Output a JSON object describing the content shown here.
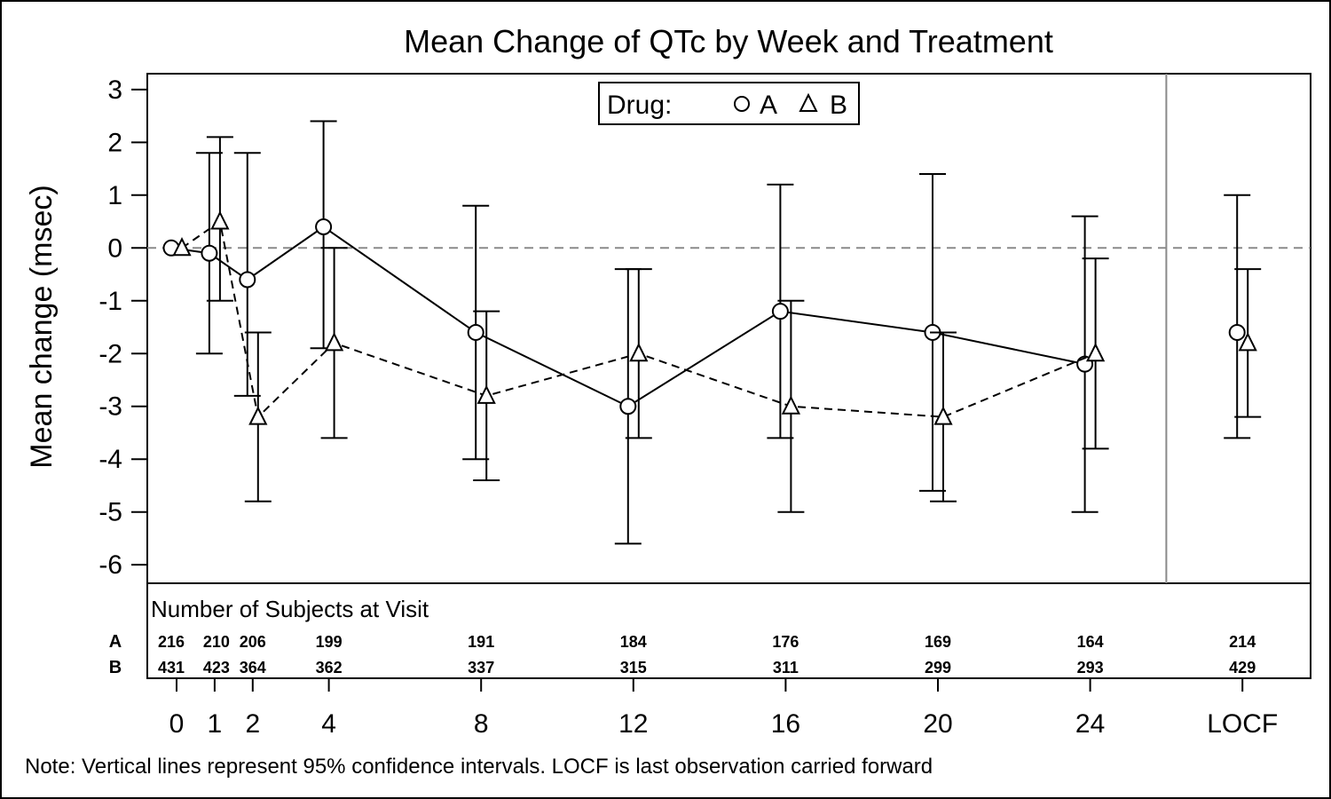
{
  "chart_data": {
    "type": "line",
    "title": "Mean Change of QTc by Week and Treatment",
    "ylabel": "Mean change (msec)",
    "ylim": [
      -6.35,
      3.3
    ],
    "yticks": [
      3,
      2,
      1,
      0,
      -1,
      -2,
      -3,
      -4,
      -5,
      -6
    ],
    "x_categories": [
      "0",
      "1",
      "2",
      "4",
      "8",
      "12",
      "16",
      "20",
      "24",
      "LOCF"
    ],
    "x_values": [
      0,
      1,
      2,
      4,
      8,
      12,
      16,
      20,
      24,
      28
    ],
    "reference_line_y": 0,
    "legend": {
      "title": "Drug:",
      "position": "top-center",
      "entries": [
        "A",
        "B"
      ]
    },
    "series": [
      {
        "name": "A",
        "marker": "circle",
        "line": "solid",
        "mean": [
          0,
          -0.1,
          -0.6,
          0.4,
          -1.6,
          -3.0,
          -1.2,
          -1.6,
          -2.2,
          -1.6
        ],
        "lower": [
          null,
          -2.0,
          -2.8,
          -1.9,
          -4.0,
          -5.6,
          -3.6,
          -4.6,
          -5.0,
          -3.6
        ],
        "upper": [
          null,
          1.8,
          1.8,
          2.4,
          0.8,
          -0.4,
          1.2,
          1.4,
          0.6,
          1.0
        ]
      },
      {
        "name": "B",
        "marker": "triangle",
        "line": "dashed",
        "mean": [
          0,
          0.5,
          -3.2,
          -1.8,
          -2.8,
          -2.0,
          -3.0,
          -3.2,
          -2.0,
          -1.8
        ],
        "lower": [
          null,
          -1.0,
          -4.8,
          -3.6,
          -4.4,
          -3.6,
          -5.0,
          -4.8,
          -3.8,
          -3.2
        ],
        "upper": [
          null,
          2.1,
          -1.6,
          0.0,
          -1.2,
          -0.4,
          -1.0,
          -1.6,
          -0.2,
          -0.4
        ]
      }
    ],
    "subjects_table": {
      "title": "Number of Subjects at Visit",
      "rows": [
        {
          "label": "A",
          "counts": [
            "216",
            "210",
            "206",
            "199",
            "191",
            "184",
            "176",
            "169",
            "164",
            "214"
          ]
        },
        {
          "label": "B",
          "counts": [
            "431",
            "423",
            "364",
            "362",
            "337",
            "315",
            "311",
            "299",
            "293",
            "429"
          ]
        }
      ]
    },
    "footnote": "Note: Vertical lines represent 95% confidence intervals.  LOCF is last observation carried forward"
  }
}
